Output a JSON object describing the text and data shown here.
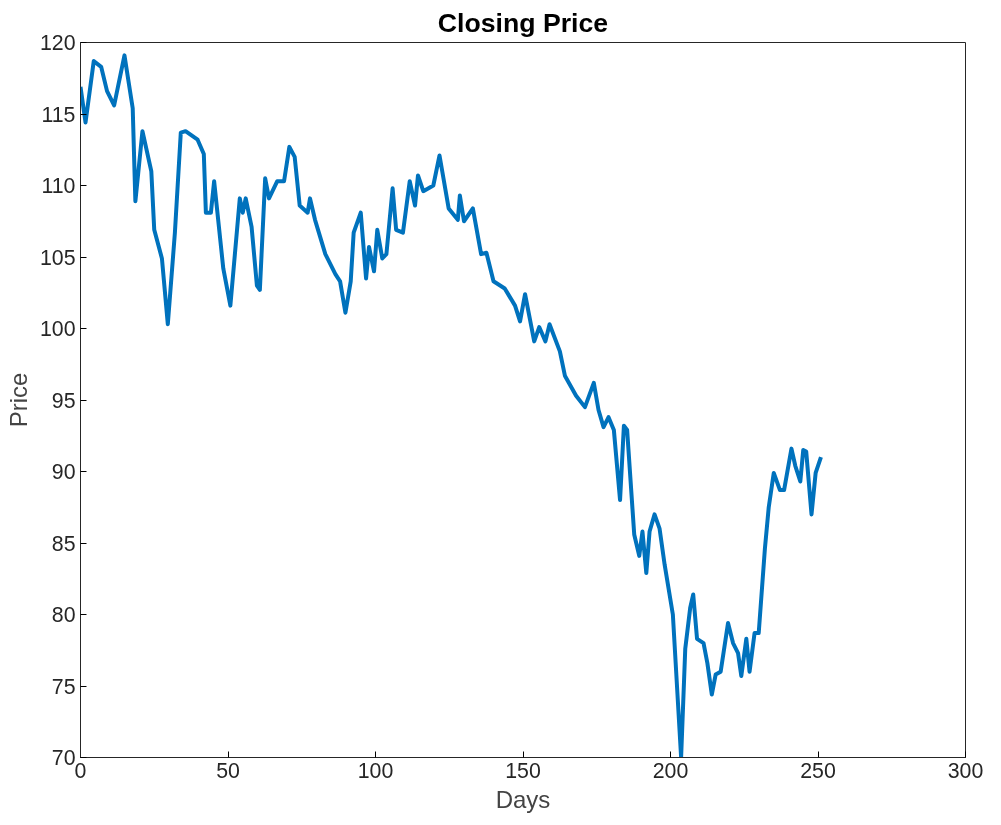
{
  "chart_data": {
    "type": "line",
    "title": "Closing Price",
    "xlabel": "Days",
    "ylabel": "Price",
    "xlim": [
      0,
      300
    ],
    "ylim": [
      70,
      120
    ],
    "xticks": [
      0,
      50,
      100,
      150,
      200,
      250,
      300
    ],
    "yticks": [
      70,
      75,
      80,
      85,
      90,
      95,
      100,
      105,
      110,
      115,
      120
    ],
    "grid": false,
    "marker": "none",
    "line_style": "solid",
    "series": [
      {
        "color": "#0072bd",
        "x": [
          0,
          1.7,
          4.5,
          7,
          9,
          11.4,
          14.9,
          17.7,
          18.6,
          21,
          24,
          25,
          27.6,
          29.6,
          32,
          34,
          35.6,
          39.7,
          41.8,
          42.5,
          44.2,
          45.3,
          48.4,
          50.8,
          54,
          55,
          56,
          58,
          59.8,
          60.8,
          62.6,
          63.9,
          66.7,
          69,
          70.8,
          72.6,
          74.3,
          77,
          77.8,
          79.5,
          83,
          86.4,
          88,
          89.8,
          91.6,
          92.6,
          95,
          96.8,
          97.8,
          99.5,
          100.6,
          102.3,
          103.7,
          105.8,
          107,
          109.3,
          111.6,
          113.4,
          114.4,
          116.2,
          119.6,
          121.7,
          124.8,
          127.9,
          128.6,
          130,
          133,
          135.8,
          137.6,
          140,
          143.8,
          147.3,
          149,
          150.7,
          153.8,
          155.5,
          157.6,
          159,
          162.5,
          164.2,
          168,
          171,
          174,
          175.6,
          177.3,
          179,
          180.8,
          182.9,
          184.2,
          185.3,
          187.7,
          189.4,
          190.5,
          191.8,
          192.9,
          194.6,
          196.3,
          198,
          200.8,
          203.6,
          205,
          206.7,
          207.7,
          209,
          211.2,
          212.5,
          214,
          215.3,
          217,
          219.5,
          221.2,
          222.9,
          224,
          225.7,
          226.8,
          228.5,
          229.9,
          232,
          233.3,
          235,
          237.1,
          238.5,
          241,
          242.3,
          244,
          245,
          246,
          247.8,
          249.2,
          251
        ],
        "values": [
          116.9,
          114.4,
          118.7,
          118.3,
          116.6,
          115.6,
          119.1,
          115.4,
          108.9,
          113.8,
          111,
          106.9,
          104.9,
          100.3,
          106.7,
          113.7,
          113.8,
          113.2,
          112.2,
          108.1,
          108.1,
          110.3,
          104.2,
          101.6,
          109.1,
          108.1,
          109.1,
          107.1,
          103,
          102.7,
          110.5,
          109.1,
          110.3,
          110.3,
          112.7,
          112,
          108.6,
          108.1,
          109.1,
          107.6,
          105.2,
          103.8,
          103.3,
          101.1,
          103.3,
          106.7,
          108.1,
          103.5,
          105.7,
          104,
          106.9,
          104.9,
          105.2,
          109.8,
          106.9,
          106.7,
          110.3,
          108.6,
          110.7,
          109.6,
          110,
          112.1,
          108.4,
          107.6,
          109.3,
          107.5,
          108.4,
          105.2,
          105.3,
          103.3,
          102.8,
          101.6,
          100.5,
          102.4,
          99.1,
          100.1,
          99.1,
          100.3,
          98.4,
          96.7,
          95.3,
          94.5,
          96.2,
          94.3,
          93.1,
          93.8,
          92.9,
          88,
          93.2,
          92.9,
          85.6,
          84.1,
          85.8,
          82.9,
          85.8,
          87,
          86,
          83.5,
          80,
          70,
          77.6,
          80.5,
          81.4,
          78.3,
          78,
          76.6,
          74.4,
          75.8,
          76,
          79.4,
          78,
          77.3,
          75.7,
          78.3,
          76,
          78.7,
          78.7,
          84.6,
          87.5,
          89.9,
          88.7,
          88.7,
          91.6,
          90.4,
          89.3,
          91.5,
          91.4,
          87,
          89.9,
          91
        ]
      }
    ]
  }
}
